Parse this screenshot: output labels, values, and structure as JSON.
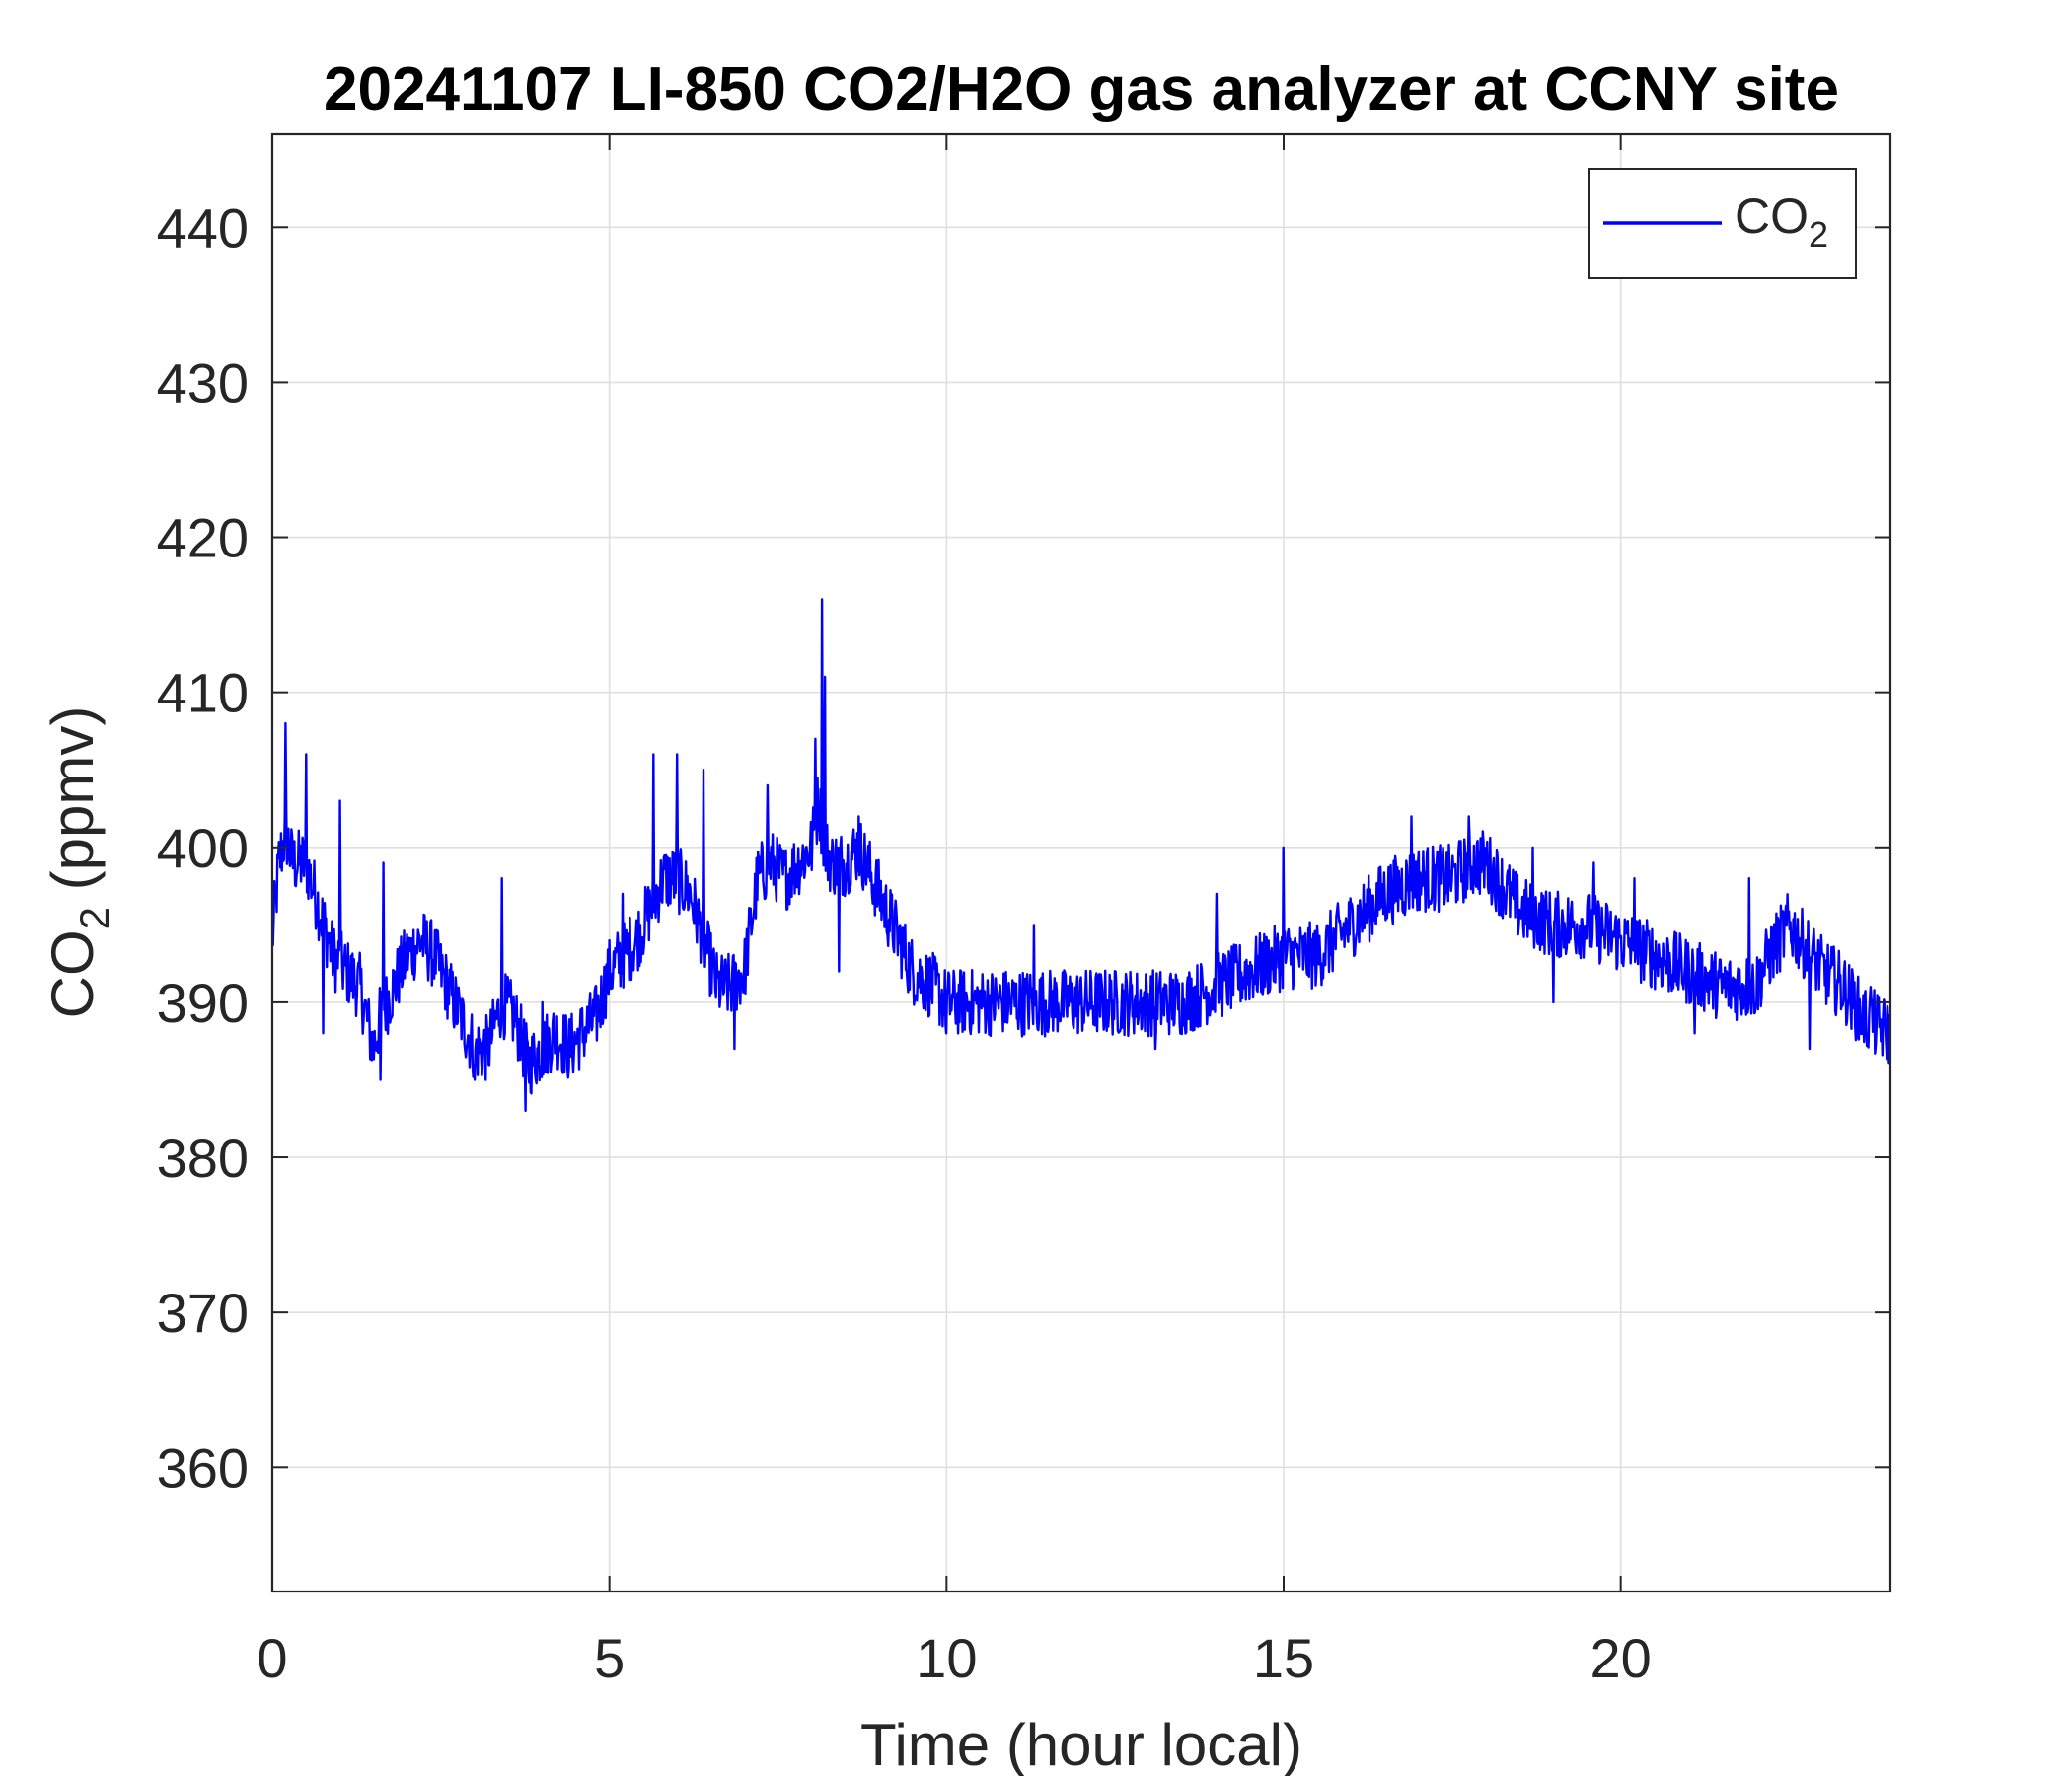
{
  "chart_data": {
    "type": "line",
    "title": "20241107 LI-850 CO2/H2O gas analyzer at CCNY site",
    "xlabel": "Time (hour local)",
    "ylabel": {
      "base": "CO",
      "sub": "2",
      "rest": " (ppmv)"
    },
    "xlim": [
      0,
      24
    ],
    "ylim": [
      352,
      446
    ],
    "xticks": [
      0,
      5,
      10,
      15,
      20
    ],
    "yticks": [
      360,
      370,
      380,
      390,
      400,
      410,
      420,
      430,
      440
    ],
    "grid": true,
    "legend_position": "top-right",
    "series": [
      {
        "name": {
          "base": "CO",
          "sub": "2"
        },
        "color": "#0000FF",
        "noise": 2.2,
        "x": [
          0,
          0.1,
          0.2,
          0.3,
          0.5,
          0.7,
          0.9,
          1.1,
          1.3,
          1.5,
          1.6,
          1.8,
          2.0,
          2.2,
          2.4,
          2.6,
          2.8,
          3.0,
          3.2,
          3.4,
          3.6,
          3.8,
          4.0,
          4.2,
          4.4,
          4.6,
          4.8,
          5.0,
          5.2,
          5.4,
          5.6,
          5.8,
          6.0,
          6.2,
          6.4,
          6.6,
          6.8,
          7.0,
          7.2,
          7.4,
          7.6,
          7.8,
          8.0,
          8.1,
          8.2,
          8.3,
          8.5,
          8.7,
          8.9,
          9.1,
          9.3,
          9.5,
          9.8,
          10.0,
          10.5,
          11.0,
          11.5,
          12.0,
          12.5,
          13.0,
          13.5,
          14.0,
          14.5,
          15.0,
          15.5,
          16.0,
          16.5,
          17.0,
          17.5,
          17.8,
          18.0,
          18.5,
          19.0,
          19.5,
          20.0,
          20.5,
          21.0,
          21.5,
          22.0,
          22.2,
          22.5,
          23.0,
          23.3,
          23.6,
          24.0
        ],
        "y": [
          394,
          399,
          401,
          399,
          399,
          396,
          393,
          392,
          391,
          387,
          389,
          391,
          393,
          394,
          393,
          391,
          389,
          387,
          387,
          390,
          389,
          386,
          387,
          388,
          387,
          388,
          389,
          392,
          393,
          394,
          396,
          398,
          398,
          397,
          394,
          391,
          391,
          392,
          398,
          399,
          398,
          399,
          400,
          403,
          400,
          399,
          399,
          400,
          398,
          396,
          394,
          392,
          391,
          390,
          390,
          390,
          390,
          390,
          390,
          390,
          390,
          391,
          392,
          393,
          393,
          395,
          397,
          398,
          398,
          399,
          399,
          396,
          395,
          395,
          394,
          393,
          392,
          391,
          391,
          393,
          395,
          392,
          391,
          389,
          388
        ],
        "spikes": [
          {
            "x": 0.2,
            "y": 408
          },
          {
            "x": 0.5,
            "y": 406
          },
          {
            "x": 0.75,
            "y": 388
          },
          {
            "x": 1.0,
            "y": 403
          },
          {
            "x": 1.6,
            "y": 385
          },
          {
            "x": 1.65,
            "y": 399
          },
          {
            "x": 3.0,
            "y": 385
          },
          {
            "x": 3.4,
            "y": 398
          },
          {
            "x": 3.75,
            "y": 383
          },
          {
            "x": 4.0,
            "y": 390
          },
          {
            "x": 5.2,
            "y": 397
          },
          {
            "x": 5.65,
            "y": 406
          },
          {
            "x": 6.0,
            "y": 406
          },
          {
            "x": 6.4,
            "y": 405
          },
          {
            "x": 6.85,
            "y": 387
          },
          {
            "x": 7.35,
            "y": 404
          },
          {
            "x": 8.05,
            "y": 407
          },
          {
            "x": 8.15,
            "y": 416
          },
          {
            "x": 8.2,
            "y": 411
          },
          {
            "x": 8.4,
            "y": 392
          },
          {
            "x": 8.7,
            "y": 402
          },
          {
            "x": 10.0,
            "y": 388
          },
          {
            "x": 11.3,
            "y": 395
          },
          {
            "x": 13.1,
            "y": 387
          },
          {
            "x": 14.0,
            "y": 397
          },
          {
            "x": 15.0,
            "y": 400
          },
          {
            "x": 16.9,
            "y": 402
          },
          {
            "x": 17.75,
            "y": 402
          },
          {
            "x": 18.7,
            "y": 400
          },
          {
            "x": 19.0,
            "y": 390
          },
          {
            "x": 19.6,
            "y": 399
          },
          {
            "x": 20.2,
            "y": 398
          },
          {
            "x": 21.1,
            "y": 388
          },
          {
            "x": 21.9,
            "y": 398
          },
          {
            "x": 22.8,
            "y": 387
          },
          {
            "x": 23.7,
            "y": 391
          }
        ]
      }
    ]
  }
}
